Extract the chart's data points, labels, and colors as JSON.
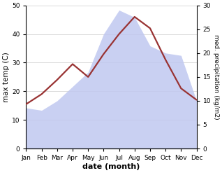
{
  "months": [
    "Jan",
    "Feb",
    "Mar",
    "Apr",
    "May",
    "Jun",
    "Jul",
    "Aug",
    "Sep",
    "Oct",
    "Nov",
    "Dec"
  ],
  "month_positions": [
    0,
    1,
    2,
    3,
    4,
    5,
    6,
    7,
    8,
    9,
    10,
    11
  ],
  "temp_max": [
    15.5,
    19.0,
    24.0,
    29.5,
    25.0,
    33.0,
    40.0,
    46.0,
    42.0,
    31.0,
    21.0,
    17.0
  ],
  "precip": [
    8.5,
    8.0,
    10.0,
    13.0,
    16.0,
    24.0,
    29.0,
    27.5,
    21.5,
    20.0,
    19.5,
    10.0
  ],
  "temp_ylim": [
    0,
    50
  ],
  "precip_ylim": [
    0,
    30
  ],
  "temp_yticks": [
    0,
    10,
    20,
    30,
    40,
    50
  ],
  "precip_yticks": [
    0,
    5,
    10,
    15,
    20,
    25,
    30
  ],
  "fill_color": "#c0c8f0",
  "fill_alpha": 0.85,
  "line_color": "#993333",
  "line_width": 1.6,
  "xlabel": "date (month)",
  "ylabel_left": "max temp (C)",
  "ylabel_right": "med. precipitation (kg/m2)",
  "bg_color": "#ffffff",
  "grid_color": "#cccccc",
  "xlabel_fontsize": 8,
  "ylabel_fontsize": 7.5,
  "tick_fontsize": 6.5
}
